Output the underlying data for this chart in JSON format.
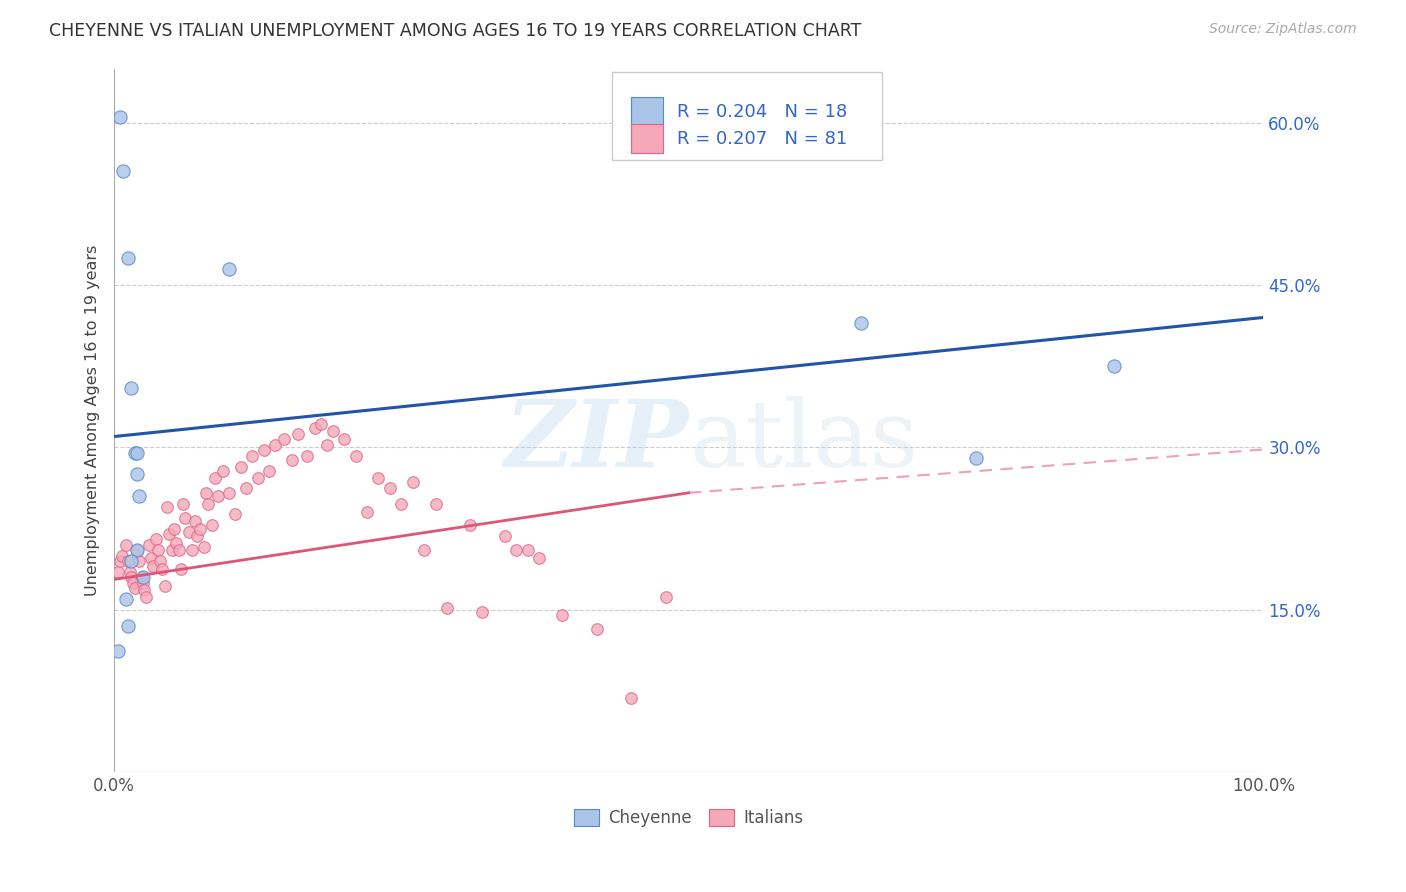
{
  "title": "CHEYENNE VS ITALIAN UNEMPLOYMENT AMONG AGES 16 TO 19 YEARS CORRELATION CHART",
  "source": "Source: ZipAtlas.com",
  "ylabel": "Unemployment Among Ages 16 to 19 years",
  "xlim": [
    0,
    1.0
  ],
  "ylim": [
    0,
    0.65
  ],
  "cheyenne_color": "#aac4e8",
  "cheyenne_edge": "#5588cc",
  "italians_color": "#f4a8b8",
  "italians_edge": "#dd6688",
  "trend_cheyenne_color": "#2255aa",
  "trend_italians_color": "#dd5577",
  "legend_text_color": "#3366cc",
  "R_cheyenne": "0.204",
  "N_cheyenne": "18",
  "R_italians": "0.207",
  "N_italians": "81",
  "cheyenne_x": [
    0.005,
    0.008,
    0.012,
    0.015,
    0.018,
    0.02,
    0.022,
    0.02,
    0.015,
    0.025,
    0.01,
    0.012,
    0.1,
    0.02,
    0.65,
    0.75,
    0.87,
    0.003
  ],
  "cheyenne_y": [
    0.605,
    0.555,
    0.475,
    0.355,
    0.295,
    0.275,
    0.255,
    0.205,
    0.195,
    0.18,
    0.16,
    0.135,
    0.465,
    0.295,
    0.415,
    0.29,
    0.375,
    0.112
  ],
  "italians_x": [
    0.003,
    0.005,
    0.007,
    0.01,
    0.012,
    0.014,
    0.015,
    0.016,
    0.018,
    0.02,
    0.022,
    0.024,
    0.025,
    0.026,
    0.028,
    0.03,
    0.032,
    0.034,
    0.036,
    0.038,
    0.04,
    0.042,
    0.044,
    0.046,
    0.048,
    0.05,
    0.052,
    0.054,
    0.056,
    0.058,
    0.06,
    0.062,
    0.065,
    0.068,
    0.07,
    0.072,
    0.075,
    0.078,
    0.08,
    0.082,
    0.085,
    0.088,
    0.09,
    0.095,
    0.1,
    0.105,
    0.11,
    0.115,
    0.12,
    0.125,
    0.13,
    0.135,
    0.14,
    0.148,
    0.155,
    0.16,
    0.168,
    0.175,
    0.18,
    0.185,
    0.19,
    0.2,
    0.21,
    0.22,
    0.23,
    0.24,
    0.25,
    0.26,
    0.27,
    0.28,
    0.29,
    0.31,
    0.32,
    0.34,
    0.35,
    0.36,
    0.37,
    0.39,
    0.42,
    0.45,
    0.48
  ],
  "italians_y": [
    0.185,
    0.195,
    0.2,
    0.21,
    0.195,
    0.185,
    0.18,
    0.175,
    0.17,
    0.205,
    0.195,
    0.18,
    0.175,
    0.168,
    0.162,
    0.21,
    0.198,
    0.19,
    0.215,
    0.205,
    0.195,
    0.188,
    0.172,
    0.245,
    0.22,
    0.205,
    0.225,
    0.212,
    0.205,
    0.188,
    0.248,
    0.235,
    0.222,
    0.205,
    0.232,
    0.218,
    0.225,
    0.208,
    0.258,
    0.248,
    0.228,
    0.272,
    0.255,
    0.278,
    0.258,
    0.238,
    0.282,
    0.262,
    0.292,
    0.272,
    0.298,
    0.278,
    0.302,
    0.308,
    0.288,
    0.312,
    0.292,
    0.318,
    0.322,
    0.302,
    0.315,
    0.308,
    0.292,
    0.24,
    0.272,
    0.262,
    0.248,
    0.268,
    0.205,
    0.248,
    0.152,
    0.228,
    0.148,
    0.218,
    0.205,
    0.205,
    0.198,
    0.145,
    0.132,
    0.068,
    0.162
  ],
  "background_color": "#ffffff",
  "grid_color": "#cccccc",
  "scatter_size": 70,
  "scatter_alpha": 0.8,
  "scatter_linewidth": 0.8
}
